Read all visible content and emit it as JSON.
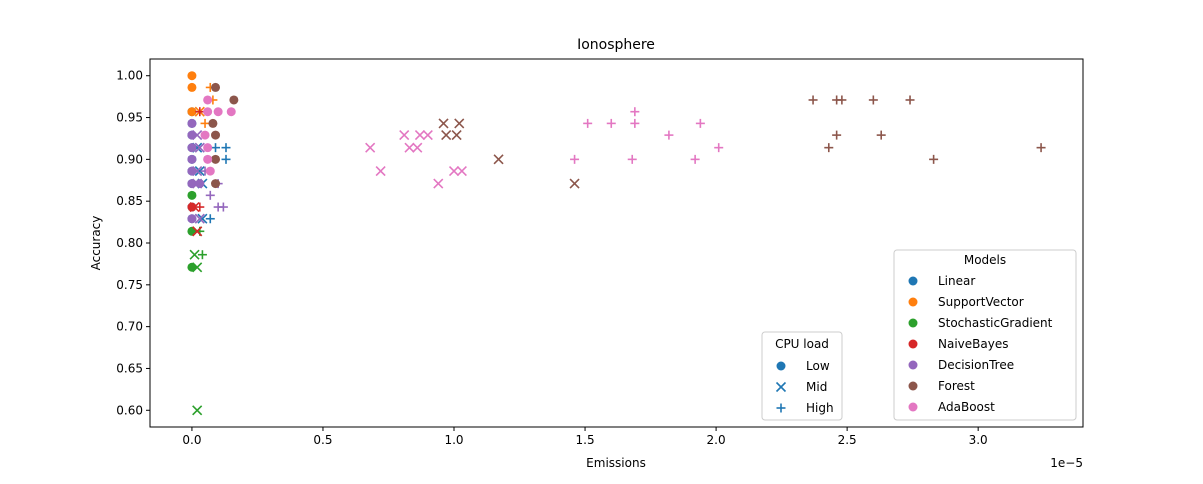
{
  "colors": {
    "Linear": "#1f77b4",
    "SupportVector": "#ff7f0e",
    "StochasticGradient": "#2ca02c",
    "NaiveBayes": "#d62728",
    "DecisionTree": "#9467bd",
    "Forest": "#8c564b",
    "AdaBoost": "#e377c2",
    "cpu_legend": "#1f77b4"
  },
  "chart_data": {
    "type": "scatter",
    "title": "Ionosphere",
    "xlabel": "Emissions",
    "ylabel": "Accuracy",
    "x_offset_label": "1e−5",
    "xlim": [
      -0.16,
      3.4
    ],
    "ylim": [
      0.58,
      1.02
    ],
    "x_unit_note": "x values are multiples of 1e-5",
    "xticks": [
      0.0,
      0.5,
      1.0,
      1.5,
      2.0,
      2.5,
      3.0
    ],
    "xtick_labels": [
      "0.0",
      "0.5",
      "1.0",
      "1.5",
      "2.0",
      "2.5",
      "3.0"
    ],
    "yticks": [
      0.6,
      0.65,
      0.7,
      0.75,
      0.8,
      0.85,
      0.9,
      0.95,
      1.0
    ],
    "ytick_labels": [
      "0.60",
      "0.65",
      "0.70",
      "0.75",
      "0.80",
      "0.85",
      "0.90",
      "0.95",
      "1.00"
    ],
    "grid": false,
    "legend_models": {
      "title": "Models",
      "placement": "bottom-right",
      "entries": [
        "Linear",
        "SupportVector",
        "StochasticGradient",
        "NaiveBayes",
        "DecisionTree",
        "Forest",
        "AdaBoost"
      ]
    },
    "legend_cpu": {
      "title": "CPU load",
      "placement": "bottom-center-right",
      "entries": [
        {
          "label": "Low",
          "marker": "circle"
        },
        {
          "label": "Mid",
          "marker": "x"
        },
        {
          "label": "High",
          "marker": "plus"
        }
      ]
    },
    "series": [
      {
        "name": "Linear",
        "marker": "circle",
        "points": [
          [
            0.0,
            0.957
          ],
          [
            0.0,
            0.943
          ],
          [
            0.0,
            0.929
          ],
          [
            0.0,
            0.914
          ],
          [
            0.0,
            0.9
          ],
          [
            0.0,
            0.886
          ],
          [
            0.0,
            0.871
          ],
          [
            0.0,
            0.843
          ],
          [
            0.0,
            0.829
          ]
        ]
      },
      {
        "name": "Linear",
        "marker": "x",
        "points": [
          [
            0.02,
            0.914
          ],
          [
            0.03,
            0.886
          ],
          [
            0.04,
            0.871
          ],
          [
            0.04,
            0.829
          ]
        ]
      },
      {
        "name": "Linear",
        "marker": "plus",
        "points": [
          [
            0.09,
            0.914
          ],
          [
            0.13,
            0.914
          ],
          [
            0.13,
            0.9
          ],
          [
            0.07,
            0.829
          ]
        ]
      },
      {
        "name": "SupportVector",
        "marker": "circle",
        "points": [
          [
            0.0,
            1.0
          ],
          [
            0.0,
            0.986
          ],
          [
            0.0,
            0.957
          ]
        ]
      },
      {
        "name": "SupportVector",
        "marker": "x",
        "points": [
          [
            0.03,
            0.957
          ]
        ]
      },
      {
        "name": "SupportVector",
        "marker": "plus",
        "points": [
          [
            0.07,
            0.986
          ],
          [
            0.08,
            0.971
          ],
          [
            0.05,
            0.943
          ]
        ]
      },
      {
        "name": "StochasticGradient",
        "marker": "circle",
        "points": [
          [
            0.0,
            0.857
          ],
          [
            0.0,
            0.814
          ],
          [
            0.0,
            0.771
          ]
        ]
      },
      {
        "name": "StochasticGradient",
        "marker": "x",
        "points": [
          [
            0.01,
            0.786
          ],
          [
            0.02,
            0.771
          ],
          [
            0.02,
            0.6
          ],
          [
            0.02,
            0.814
          ]
        ]
      },
      {
        "name": "StochasticGradient",
        "marker": "plus",
        "points": [
          [
            0.04,
            0.786
          ],
          [
            0.03,
            0.814
          ]
        ]
      },
      {
        "name": "NaiveBayes",
        "marker": "circle",
        "points": [
          [
            0.0,
            0.843
          ]
        ]
      },
      {
        "name": "NaiveBayes",
        "marker": "x",
        "points": [
          [
            0.01,
            0.843
          ],
          [
            0.02,
            0.814
          ]
        ]
      },
      {
        "name": "NaiveBayes",
        "marker": "plus",
        "points": [
          [
            0.03,
            0.957
          ],
          [
            0.03,
            0.843
          ]
        ]
      },
      {
        "name": "DecisionTree",
        "marker": "circle",
        "points": [
          [
            0.0,
            0.943
          ],
          [
            0.0,
            0.929
          ],
          [
            0.0,
            0.914
          ],
          [
            0.0,
            0.9
          ],
          [
            0.0,
            0.886
          ],
          [
            0.0,
            0.871
          ],
          [
            0.0,
            0.829
          ],
          [
            0.03,
            0.871
          ]
        ]
      },
      {
        "name": "DecisionTree",
        "marker": "x",
        "points": [
          [
            0.02,
            0.929
          ],
          [
            0.03,
            0.914
          ],
          [
            0.02,
            0.886
          ],
          [
            0.02,
            0.871
          ],
          [
            0.03,
            0.829
          ]
        ]
      },
      {
        "name": "DecisionTree",
        "marker": "plus",
        "points": [
          [
            0.07,
            0.857
          ],
          [
            0.1,
            0.871
          ],
          [
            0.1,
            0.843
          ],
          [
            0.12,
            0.843
          ],
          [
            0.05,
            0.886
          ]
        ]
      },
      {
        "name": "Forest",
        "marker": "circle",
        "points": [
          [
            0.09,
            0.986
          ],
          [
            0.16,
            0.971
          ],
          [
            0.08,
            0.943
          ],
          [
            0.09,
            0.929
          ],
          [
            0.09,
            0.9
          ],
          [
            0.09,
            0.871
          ]
        ]
      },
      {
        "name": "Forest",
        "marker": "x",
        "points": [
          [
            0.96,
            0.943
          ],
          [
            1.02,
            0.943
          ],
          [
            0.97,
            0.929
          ],
          [
            1.01,
            0.929
          ],
          [
            1.17,
            0.9
          ],
          [
            1.46,
            0.871
          ]
        ]
      },
      {
        "name": "Forest",
        "marker": "plus",
        "points": [
          [
            2.37,
            0.971
          ],
          [
            2.46,
            0.971
          ],
          [
            2.48,
            0.971
          ],
          [
            2.6,
            0.971
          ],
          [
            2.74,
            0.971
          ],
          [
            2.46,
            0.929
          ],
          [
            2.63,
            0.929
          ],
          [
            2.43,
            0.914
          ],
          [
            2.83,
            0.9
          ],
          [
            3.24,
            0.914
          ]
        ]
      },
      {
        "name": "AdaBoost",
        "marker": "circle",
        "points": [
          [
            0.06,
            0.971
          ],
          [
            0.06,
            0.957
          ],
          [
            0.1,
            0.957
          ],
          [
            0.15,
            0.957
          ],
          [
            0.05,
            0.929
          ],
          [
            0.06,
            0.914
          ],
          [
            0.06,
            0.9
          ],
          [
            0.07,
            0.886
          ]
        ]
      },
      {
        "name": "AdaBoost",
        "marker": "x",
        "points": [
          [
            0.68,
            0.914
          ],
          [
            0.72,
            0.886
          ],
          [
            0.81,
            0.929
          ],
          [
            0.83,
            0.914
          ],
          [
            0.86,
            0.914
          ],
          [
            0.87,
            0.929
          ],
          [
            0.9,
            0.929
          ],
          [
            0.94,
            0.871
          ],
          [
            1.0,
            0.886
          ],
          [
            1.03,
            0.886
          ]
        ]
      },
      {
        "name": "AdaBoost",
        "marker": "plus",
        "points": [
          [
            1.46,
            0.9
          ],
          [
            1.51,
            0.943
          ],
          [
            1.6,
            0.943
          ],
          [
            1.68,
            0.9
          ],
          [
            1.69,
            0.957
          ],
          [
            1.69,
            0.943
          ],
          [
            1.82,
            0.929
          ],
          [
            1.92,
            0.9
          ],
          [
            1.94,
            0.943
          ],
          [
            2.01,
            0.914
          ]
        ]
      }
    ]
  }
}
